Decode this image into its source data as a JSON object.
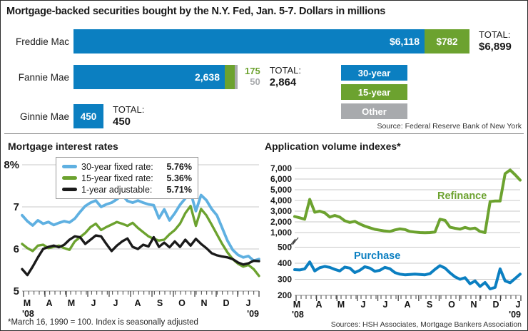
{
  "title": "Mortgage-backed securities bought by the N.Y. Fed, Jan. 5-7. Dollars in millions",
  "footnote": "*March 16, 1990 = 100. Index is seasonally adjusted",
  "colors": {
    "blue": "#0b7fc1",
    "green": "#6ca22f",
    "gray": "#a8aaad",
    "light_blue": "#5fb0e1",
    "black": "#1a1a1a",
    "grid": "#c9c9c9",
    "axis_dark": "#444444",
    "baseline": "#9a9a9a"
  },
  "chart_data": [
    {
      "type": "bar",
      "title": "Mortgage-backed securities bought by the N.Y. Fed, Jan. 5-7. Dollars in millions",
      "orientation": "horizontal",
      "unit": "$ millions",
      "xmax": 6899,
      "legend": [
        {
          "label": "30-year",
          "color_key": "blue"
        },
        {
          "label": "15-year",
          "color_key": "green"
        },
        {
          "label": "Other",
          "color_key": "gray"
        }
      ],
      "rows": [
        {
          "label": "Freddie Mac",
          "segments": [
            {
              "name": "30-year",
              "value": 6118,
              "display": "$6,118"
            },
            {
              "name": "15-year",
              "value": 782,
              "display": "$782"
            }
          ],
          "outside_labels": [],
          "total_label": "TOTAL:",
          "total": 6899,
          "total_display": "$6,899"
        },
        {
          "label": "Fannie Mae",
          "segments": [
            {
              "name": "30-year",
              "value": 2638,
              "display": "2,638"
            },
            {
              "name": "15-year",
              "value": 175,
              "display": ""
            },
            {
              "name": "Other",
              "value": 50,
              "display": ""
            }
          ],
          "outside_labels": [
            {
              "text": "175",
              "color_key": "green"
            },
            {
              "text": "50",
              "color_key": "gray"
            }
          ],
          "total_label": "TOTAL:",
          "total": 2864,
          "total_display": "2,864"
        },
        {
          "label": "Ginnie Mae",
          "segments": [
            {
              "name": "30-year",
              "value": 450,
              "display": "450"
            }
          ],
          "outside_labels": [],
          "total_label": "TOTAL:",
          "total": 450,
          "total_display": "450"
        }
      ],
      "source": "Source: Federal Reserve Bank of New York"
    },
    {
      "type": "line",
      "title": "Mortgage interest rates",
      "ylim": [
        5,
        8
      ],
      "yticks": [
        [
          5,
          "5"
        ],
        [
          6,
          "6"
        ],
        [
          7,
          "7"
        ],
        [
          8,
          "8%"
        ]
      ],
      "x_tick_labels": [
        "M",
        "A",
        "M",
        "J",
        "J",
        "A",
        "S",
        "O",
        "N",
        "D",
        "J"
      ],
      "x_start_label": "'08",
      "x_end_label": "'09",
      "grid": true,
      "legend": [
        {
          "label": "30-year fixed rate:",
          "value": "5.76%",
          "color_key": "light_blue"
        },
        {
          "label": "15-year fixed rate:",
          "value": "5.36%",
          "color_key": "green"
        },
        {
          "label": "1-year adjustable:",
          "value": "5.71%",
          "color_key": "black"
        }
      ],
      "series": [
        {
          "name": "30-year fixed rate",
          "color_key": "light_blue",
          "values": [
            6.8,
            6.66,
            6.56,
            6.68,
            6.6,
            6.64,
            6.57,
            6.62,
            6.66,
            6.63,
            6.72,
            6.88,
            7.02,
            7.1,
            7.15,
            7.0,
            7.06,
            7.1,
            7.18,
            7.28,
            7.14,
            7.1,
            7.15,
            7.1,
            7.06,
            7.04,
            6.73,
            6.94,
            6.68,
            6.85,
            7.05,
            7.2,
            7.35,
            6.9,
            7.28,
            7.16,
            6.95,
            6.8,
            6.5,
            6.2,
            5.98,
            5.86,
            5.8,
            5.83,
            5.72,
            5.76
          ]
        },
        {
          "name": "15-year fixed rate",
          "color_key": "green",
          "values": [
            6.12,
            6.02,
            5.95,
            6.08,
            6.1,
            6.02,
            6.05,
            6.08,
            6.02,
            5.98,
            6.18,
            6.28,
            6.38,
            6.52,
            6.6,
            6.45,
            6.52,
            6.58,
            6.64,
            6.6,
            6.55,
            6.62,
            6.5,
            6.4,
            6.3,
            6.24,
            6.2,
            6.22,
            6.35,
            6.45,
            6.6,
            6.85,
            7.02,
            6.55,
            6.95,
            6.8,
            6.58,
            6.35,
            6.12,
            5.92,
            5.76,
            5.65,
            5.58,
            5.62,
            5.52,
            5.36
          ]
        },
        {
          "name": "1-year adjustable",
          "color_key": "black",
          "values": [
            5.52,
            5.38,
            5.58,
            5.8,
            6.0,
            6.05,
            6.08,
            6.04,
            6.1,
            6.22,
            6.3,
            6.28,
            6.12,
            6.22,
            6.32,
            6.3,
            6.12,
            5.95,
            6.08,
            6.18,
            6.25,
            6.05,
            6.0,
            6.1,
            6.06,
            6.28,
            6.05,
            6.15,
            6.04,
            6.18,
            6.05,
            6.22,
            6.08,
            6.24,
            6.12,
            6.02,
            5.9,
            5.85,
            5.82,
            5.8,
            5.76,
            5.68,
            5.63,
            5.66,
            5.72,
            5.71
          ]
        }
      ]
    },
    {
      "type": "line",
      "title": "Application volume indexes*",
      "broken_axis": true,
      "upper_ylim": [
        1000,
        7000
      ],
      "upper_ticks": [
        [
          1000,
          "1,000"
        ],
        [
          2000,
          "2,000"
        ],
        [
          3000,
          "3,000"
        ],
        [
          4000,
          "4,000"
        ],
        [
          5000,
          "5,000"
        ],
        [
          6000,
          "6,000"
        ],
        [
          7000,
          "7,000"
        ]
      ],
      "lower_ylim": [
        200,
        500
      ],
      "lower_ticks": [
        [
          200,
          "200"
        ],
        [
          300,
          "300"
        ],
        [
          400,
          "400"
        ],
        [
          500,
          "500"
        ]
      ],
      "x_tick_labels": [
        "M",
        "A",
        "M",
        "J",
        "J",
        "A",
        "S",
        "O",
        "N",
        "D",
        "J"
      ],
      "x_start_label": "'08",
      "x_end_label": "'09",
      "grid": true,
      "series": [
        {
          "name": "Refinance",
          "label": "Refinance",
          "color_key": "green",
          "axis": "upper",
          "values": [
            2500,
            2380,
            2250,
            4100,
            2900,
            3000,
            2850,
            2450,
            2600,
            2450,
            2100,
            1950,
            2050,
            1800,
            1600,
            1450,
            1300,
            1220,
            1150,
            1100,
            1250,
            1350,
            1280,
            1100,
            1050,
            1000,
            980,
            1000,
            1050,
            2250,
            2150,
            1500,
            1400,
            1320,
            1480,
            1350,
            1420,
            1100,
            1000,
            3900,
            3950,
            3950,
            6500,
            6850,
            6400,
            5900
          ]
        },
        {
          "name": "Purchase",
          "label": "Purchase",
          "color_key": "blue",
          "axis": "lower",
          "values": [
            360,
            358,
            365,
            408,
            352,
            372,
            380,
            374,
            362,
            352,
            376,
            370,
            342,
            356,
            378,
            370,
            350,
            356,
            374,
            366,
            342,
            332,
            328,
            330,
            332,
            330,
            328,
            335,
            362,
            385,
            370,
            340,
            315,
            300,
            310,
            272,
            290,
            255,
            280,
            240,
            250,
            365,
            290,
            278,
            305,
            332
          ]
        }
      ],
      "source": "Sources: HSH Associates, Mortgage Bankers Association"
    }
  ]
}
